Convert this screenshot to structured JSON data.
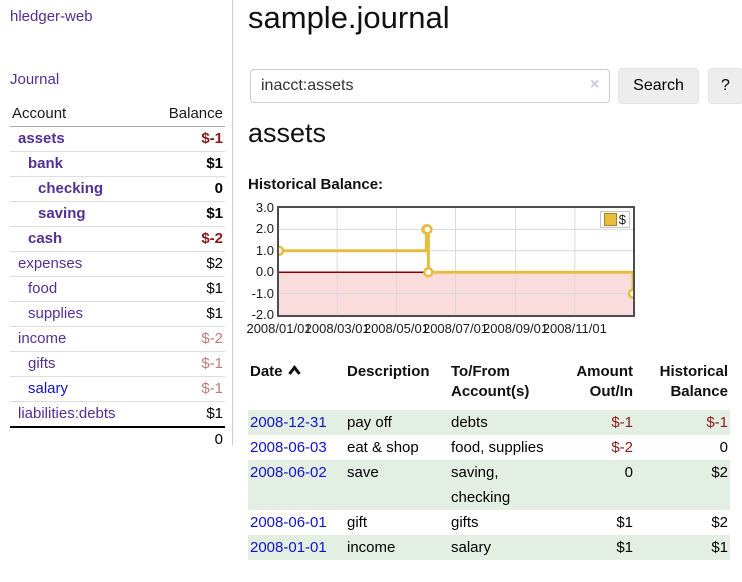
{
  "colors": {
    "purple_link": "#542f95",
    "blue_link": "#1212cc",
    "neg_strong": "#8f1818",
    "neg_soft": "#bf7b7b",
    "row_green": "#e3efe3",
    "button_bg": "#ededed",
    "input_border": "#cccccc",
    "chart_gold": "#e6bd3e",
    "chart_negative_bg": "#fadcdc",
    "zero_line": "#8b0000",
    "chart_border": "#4d4d4d",
    "grid_line": "#d9d9d9"
  },
  "sidebar": {
    "app_title": "hledger-web",
    "nav": [
      {
        "label": "Journal"
      }
    ],
    "accounts_table": {
      "headers": {
        "account": "Account",
        "balance": "Balance"
      },
      "rows": [
        {
          "account": "assets",
          "balance": "$-1",
          "depth": 0,
          "emph": true,
          "link": "purple",
          "balance_tone": "neg-strong"
        },
        {
          "account": "bank",
          "balance": "$1",
          "depth": 1,
          "emph": true,
          "link": "purple",
          "balance_tone": "normal"
        },
        {
          "account": "checking",
          "balance": "0",
          "depth": 2,
          "emph": true,
          "link": "purple",
          "balance_tone": "normal"
        },
        {
          "account": "saving",
          "balance": "$1",
          "depth": 2,
          "emph": true,
          "link": "purple",
          "balance_tone": "normal"
        },
        {
          "account": "cash",
          "balance": "$-2",
          "depth": 1,
          "emph": true,
          "link": "purple",
          "balance_tone": "neg-strong"
        },
        {
          "account": "expenses",
          "balance": "$2",
          "depth": 0,
          "emph": false,
          "link": "purple",
          "balance_tone": "normal"
        },
        {
          "account": "food",
          "balance": "$1",
          "depth": 1,
          "emph": false,
          "link": "purple",
          "balance_tone": "normal"
        },
        {
          "account": "supplies",
          "balance": "$1",
          "depth": 1,
          "emph": false,
          "link": "purple",
          "balance_tone": "normal"
        },
        {
          "account": "income",
          "balance": "$-2",
          "depth": 0,
          "emph": false,
          "link": "purple",
          "balance_tone": "neg-soft"
        },
        {
          "account": "gifts",
          "balance": "$-1",
          "depth": 1,
          "emph": false,
          "link": "purple",
          "balance_tone": "neg-soft"
        },
        {
          "account": "salary",
          "balance": "$-1",
          "depth": 1,
          "emph": false,
          "link": "blue",
          "balance_tone": "neg-soft"
        },
        {
          "account": "liabilities:debts",
          "balance": "$1",
          "depth": 0,
          "emph": false,
          "link": "purple",
          "balance_tone": "normal"
        }
      ],
      "total": "0"
    }
  },
  "main": {
    "title": "sample.journal",
    "search": {
      "value": "inacct:assets",
      "clear_icon": "×",
      "search_button": "Search",
      "help_button": "?"
    },
    "account_heading": "assets",
    "section_label": "Historical Balance:"
  },
  "chart_data": {
    "type": "line",
    "step": true,
    "title": "Historical Balance",
    "legend_entries": [
      "$"
    ],
    "legend_position": "top-right",
    "x": [
      "2008-01-01",
      "2008-06-01",
      "2008-06-02",
      "2008-06-03",
      "2008-12-31"
    ],
    "series": [
      {
        "name": "$",
        "values": [
          1,
          2,
          2,
          0,
          -1
        ]
      }
    ],
    "ylim": [
      -2,
      3
    ],
    "yticks": [
      "3.0",
      "2.0",
      "1.0",
      "0.0",
      "-1.0",
      "-2.0"
    ],
    "xticks": [
      "2008/01/01",
      "2008/03/01",
      "2008/05/01",
      "2008/07/01",
      "2008/09/01",
      "2008/11/01"
    ],
    "grid": true,
    "negative_region": true
  },
  "register": {
    "headers": {
      "date": "Date",
      "sort_icon": "chevron-up",
      "description": "Description",
      "accounts": "To/From Account(s)",
      "amount": "Amount Out/In",
      "balance": "Historical Balance"
    },
    "rows": [
      {
        "date": "2008-12-31",
        "description": "pay off",
        "accounts": "debts",
        "amount": "$-1",
        "balance": "$-1",
        "amount_tone": "neg",
        "balance_tone": "neg"
      },
      {
        "date": "2008-06-03",
        "description": "eat & shop",
        "accounts": "food, supplies",
        "amount": "$-2",
        "balance": "0",
        "amount_tone": "neg",
        "balance_tone": "normal"
      },
      {
        "date": "2008-06-02",
        "description": "save",
        "accounts": "saving, checking",
        "amount": "0",
        "balance": "$2",
        "amount_tone": "normal",
        "balance_tone": "normal"
      },
      {
        "date": "2008-06-01",
        "description": "gift",
        "accounts": "gifts",
        "amount": "$1",
        "balance": "$2",
        "amount_tone": "normal",
        "balance_tone": "normal"
      },
      {
        "date": "2008-01-01",
        "description": "income",
        "accounts": "salary",
        "amount": "$1",
        "balance": "$1",
        "amount_tone": "normal",
        "balance_tone": "normal"
      }
    ]
  }
}
